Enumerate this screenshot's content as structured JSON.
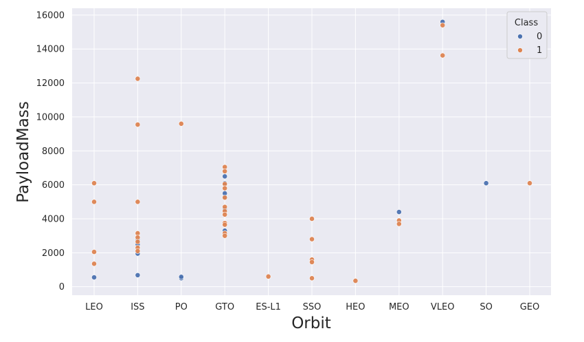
{
  "chart_data": {
    "type": "scatter",
    "title": "",
    "xlabel": "Orbit",
    "ylabel": "PayloadMass",
    "categories": [
      "LEO",
      "ISS",
      "PO",
      "GTO",
      "ES-L1",
      "SSO",
      "HEO",
      "MEO",
      "VLEO",
      "SO",
      "GEO"
    ],
    "ylim": [
      -500,
      16400
    ],
    "yticks": [
      0,
      2000,
      4000,
      6000,
      8000,
      10000,
      12000,
      14000,
      16000
    ],
    "ytick_labels": [
      "0",
      "2000",
      "4000",
      "6000",
      "8000",
      "10000",
      "12000",
      "14000",
      "16000"
    ],
    "grid": true,
    "legend": {
      "title": "Class",
      "location": "top-right",
      "entries": [
        "0",
        "1"
      ]
    },
    "series": [
      {
        "name": "0",
        "color": "#4c72b0",
        "points": [
          {
            "x": "LEO",
            "y": 550
          },
          {
            "x": "ISS",
            "y": 680
          },
          {
            "x": "ISS",
            "y": 1950
          },
          {
            "x": "ISS",
            "y": 2500
          },
          {
            "x": "ISS",
            "y": 2750
          },
          {
            "x": "PO",
            "y": 500
          },
          {
            "x": "PO",
            "y": 580
          },
          {
            "x": "GTO",
            "y": 3300
          },
          {
            "x": "GTO",
            "y": 4550
          },
          {
            "x": "GTO",
            "y": 5300
          },
          {
            "x": "GTO",
            "y": 5500
          },
          {
            "x": "GTO",
            "y": 6100
          },
          {
            "x": "GTO",
            "y": 6500
          },
          {
            "x": "MEO",
            "y": 4400
          },
          {
            "x": "VLEO",
            "y": 15600
          },
          {
            "x": "SO",
            "y": 6100
          }
        ]
      },
      {
        "name": "1",
        "color": "#dd8452",
        "points": [
          {
            "x": "LEO",
            "y": 6100
          },
          {
            "x": "LEO",
            "y": 5000
          },
          {
            "x": "LEO",
            "y": 2050
          },
          {
            "x": "LEO",
            "y": 1350
          },
          {
            "x": "ISS",
            "y": 12250
          },
          {
            "x": "ISS",
            "y": 9550
          },
          {
            "x": "ISS",
            "y": 5000
          },
          {
            "x": "ISS",
            "y": 3150
          },
          {
            "x": "ISS",
            "y": 2900
          },
          {
            "x": "ISS",
            "y": 2650
          },
          {
            "x": "ISS",
            "y": 2300
          },
          {
            "x": "ISS",
            "y": 2100
          },
          {
            "x": "PO",
            "y": 9600
          },
          {
            "x": "GTO",
            "y": 7050
          },
          {
            "x": "GTO",
            "y": 6800
          },
          {
            "x": "GTO",
            "y": 6050
          },
          {
            "x": "GTO",
            "y": 5800
          },
          {
            "x": "GTO",
            "y": 5250
          },
          {
            "x": "GTO",
            "y": 4700
          },
          {
            "x": "GTO",
            "y": 4450
          },
          {
            "x": "GTO",
            "y": 4250
          },
          {
            "x": "GTO",
            "y": 3750
          },
          {
            "x": "GTO",
            "y": 3650
          },
          {
            "x": "GTO",
            "y": 3150
          },
          {
            "x": "GTO",
            "y": 3000
          },
          {
            "x": "ES-L1",
            "y": 600
          },
          {
            "x": "SSO",
            "y": 4000
          },
          {
            "x": "SSO",
            "y": 2800
          },
          {
            "x": "SSO",
            "y": 1600
          },
          {
            "x": "SSO",
            "y": 1450
          },
          {
            "x": "SSO",
            "y": 500
          },
          {
            "x": "HEO",
            "y": 350
          },
          {
            "x": "MEO",
            "y": 3900
          },
          {
            "x": "MEO",
            "y": 3700
          },
          {
            "x": "VLEO",
            "y": 15400
          },
          {
            "x": "VLEO",
            "y": 13620
          },
          {
            "x": "GEO",
            "y": 6100
          }
        ]
      }
    ]
  }
}
